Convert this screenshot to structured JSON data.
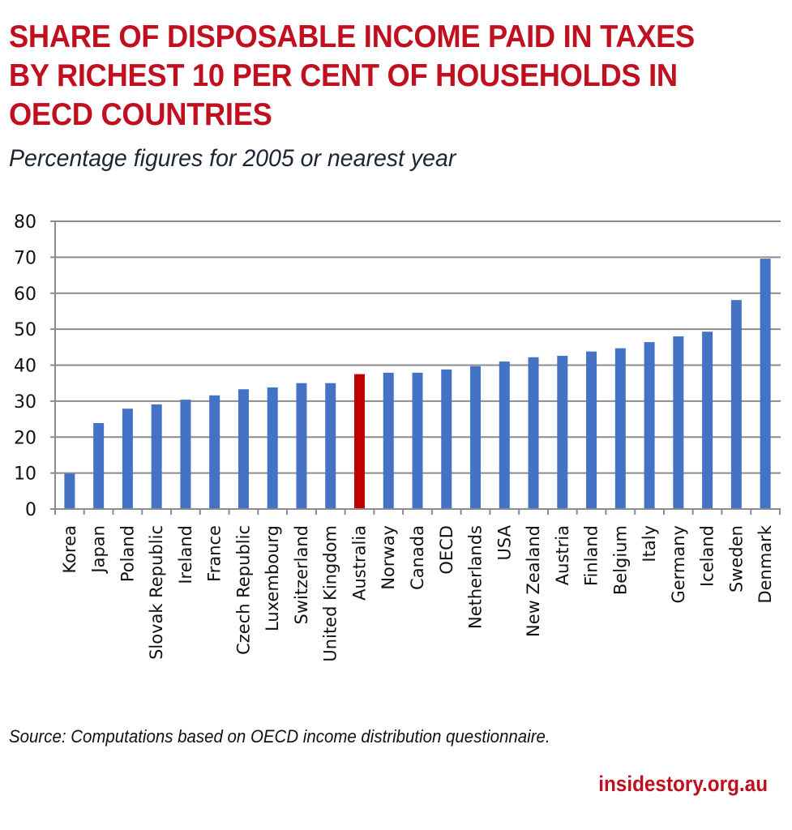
{
  "header": {
    "title": "SHARE OF DISPOSABLE INCOME PAID IN TAXES BY RICHEST 10 PER CENT OF HOUSEHOLDS IN OECD COUNTRIES",
    "subtitle": "Percentage figures for 2005 or nearest year"
  },
  "footer": {
    "source": "Source: Computations based on OECD income distribution questionnaire.",
    "brand": "insidestory.org.au"
  },
  "colors": {
    "title": "#c0101f",
    "bar": "#4472c4",
    "highlight_bar": "#c00000",
    "grid": "#8c8c8c"
  },
  "chart_data": {
    "type": "bar",
    "title": "SHARE OF DISPOSABLE INCOME PAID IN TAXES BY RICHEST 10 PER CENT OF HOUSEHOLDS IN OECD COUNTRIES",
    "subtitle": "Percentage figures for 2005 or nearest year",
    "xlabel": "",
    "ylabel": "",
    "ylim": [
      0,
      80
    ],
    "yticks": [
      0,
      10,
      20,
      30,
      40,
      50,
      60,
      70,
      80
    ],
    "grid": true,
    "legend": "none",
    "highlight": "Australia",
    "categories": [
      "Korea",
      "Japan",
      "Poland",
      "Slovak Republic",
      "Ireland",
      "France",
      "Czech Republic",
      "Luxembourg",
      "Switzerland",
      "United Kingdom",
      "Australia",
      "Norway",
      "Canada",
      "OECD",
      "Netherlands",
      "USA",
      "New Zealand",
      "Austria",
      "Finland",
      "Belgium",
      "Italy",
      "Germany",
      "Iceland",
      "Sweden",
      "Denmark"
    ],
    "values": [
      9.8,
      23.9,
      27.9,
      29.1,
      30.4,
      31.6,
      33.3,
      33.8,
      35.0,
      35.0,
      37.5,
      37.9,
      37.9,
      38.8,
      39.7,
      41.0,
      42.2,
      42.6,
      43.8,
      44.7,
      46.4,
      48.0,
      49.3,
      58.1,
      69.6
    ]
  }
}
